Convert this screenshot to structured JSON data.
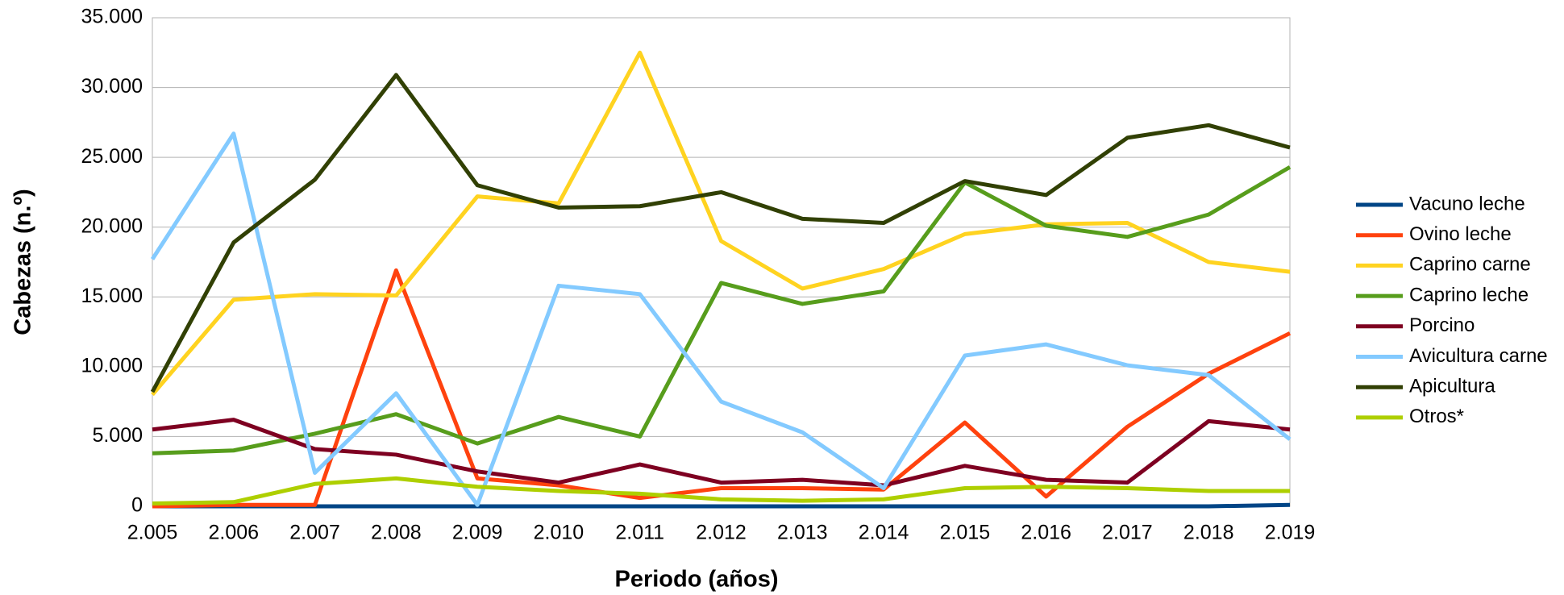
{
  "chart_data": {
    "type": "line",
    "xlabel": "Periodo (años)",
    "ylabel": "Cabezas (n.º)",
    "categories": [
      "2.005",
      "2.006",
      "2.007",
      "2.008",
      "2.009",
      "2.010",
      "2.011",
      "2.012",
      "2.013",
      "2.014",
      "2.015",
      "2.016",
      "2.017",
      "2.018",
      "2.019"
    ],
    "ylim": [
      0,
      35000
    ],
    "yticks": [
      0,
      {
        "value": 5000,
        "label": "5.000"
      },
      {
        "value": 10000,
        "label": "10.000"
      },
      {
        "value": 15000,
        "label": "15.000"
      },
      {
        "value": 20000,
        "label": "20.000"
      },
      {
        "value": 25000,
        "label": "25.000"
      },
      {
        "value": 30000,
        "label": "30.000"
      },
      {
        "value": 35000,
        "label": "35.000"
      }
    ],
    "grid": true,
    "legend": "right",
    "series": [
      {
        "name": "Vacuno leche",
        "color": "#004586",
        "values": [
          0,
          0,
          0,
          0,
          0,
          0,
          0,
          0,
          0,
          0,
          0,
          0,
          0,
          0,
          100
        ]
      },
      {
        "name": "Ovino leche",
        "color": "#ff420e",
        "values": [
          0,
          100,
          100,
          16900,
          2000,
          1500,
          600,
          1300,
          1300,
          1200,
          6000,
          700,
          5700,
          9500,
          12400
        ]
      },
      {
        "name": "Caprino carne",
        "color": "#ffd320",
        "values": [
          8000,
          14800,
          15200,
          15100,
          22200,
          21700,
          32500,
          19000,
          15600,
          17000,
          19500,
          20200,
          20300,
          17500,
          16800
        ]
      },
      {
        "name": "Caprino leche",
        "color": "#579d1c",
        "values": [
          3800,
          4000,
          5200,
          6600,
          4500,
          6400,
          5000,
          16000,
          14500,
          15400,
          23200,
          20100,
          19300,
          20900,
          24300
        ]
      },
      {
        "name": "Porcino",
        "color": "#7e0021",
        "values": [
          5500,
          6200,
          4100,
          3700,
          2500,
          1700,
          3000,
          1700,
          1900,
          1500,
          2900,
          1900,
          1700,
          6100,
          5500
        ]
      },
      {
        "name": "Avicultura carne",
        "color": "#83caff",
        "values": [
          17700,
          26700,
          2400,
          8100,
          100,
          15800,
          15200,
          7500,
          5300,
          1300,
          10800,
          11600,
          10100,
          9400,
          4800
        ]
      },
      {
        "name": "Apicultura",
        "color": "#314004",
        "values": [
          8200,
          18900,
          23400,
          30900,
          23000,
          21400,
          21500,
          22500,
          20600,
          20300,
          23300,
          22300,
          26400,
          27300,
          25700
        ]
      },
      {
        "name": "Otros*",
        "color": "#aecf00",
        "values": [
          200,
          300,
          1600,
          2000,
          1400,
          1100,
          900,
          500,
          400,
          500,
          1300,
          1400,
          1300,
          1100,
          1100
        ]
      }
    ]
  }
}
